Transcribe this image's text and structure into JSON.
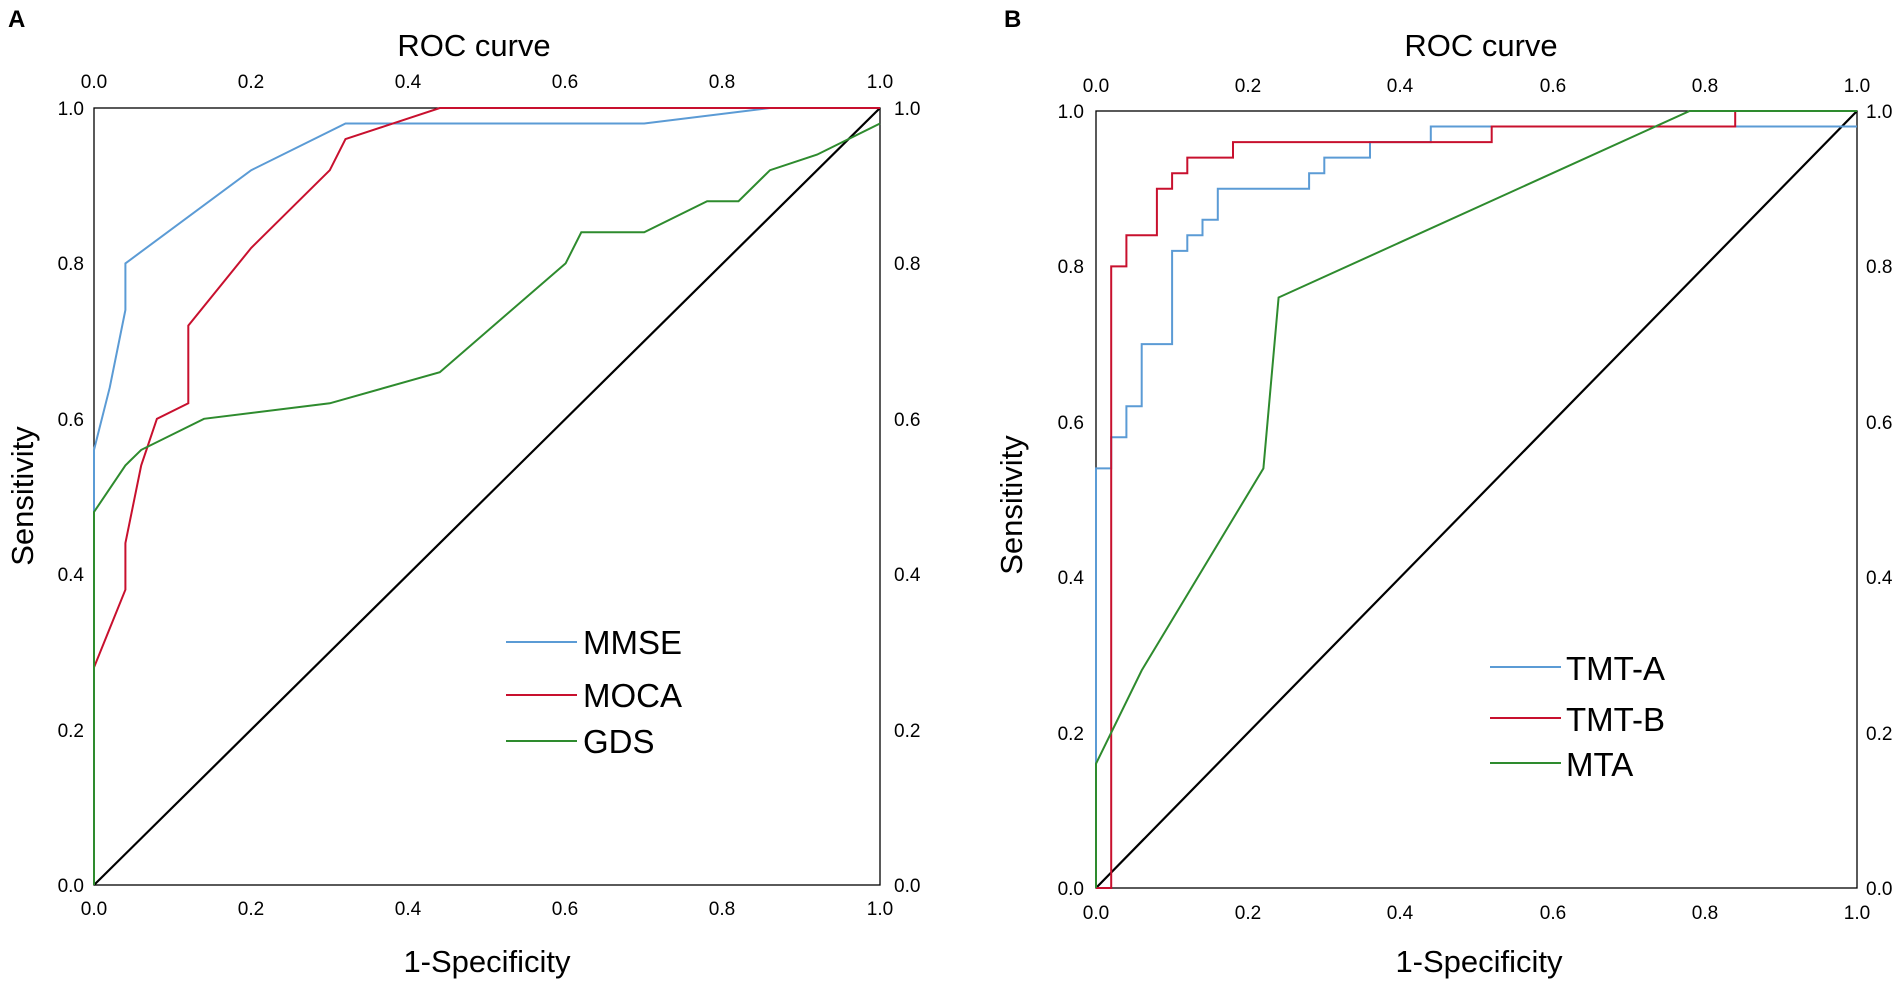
{
  "chart_data": [
    {
      "panel": "A",
      "type": "line",
      "title": "ROC curve",
      "xlabel": "1-Specificity",
      "ylabel": "Sensitivity",
      "xlim": [
        0,
        1
      ],
      "ylim": [
        0,
        1
      ],
      "ticks": [
        "0.0",
        "0.2",
        "0.4",
        "0.6",
        "0.8",
        "1.0"
      ],
      "legend_position": "lower-right",
      "reference_line": true,
      "series": [
        {
          "name": "MMSE",
          "color": "#5b9bd5",
          "x": [
            0,
            0,
            0.02,
            0.04,
            0.04,
            0.2,
            0.32,
            0.7,
            0.86,
            1.0
          ],
          "y": [
            0,
            0.56,
            0.64,
            0.74,
            0.8,
            0.92,
            0.98,
            0.98,
            1.0,
            1.0
          ]
        },
        {
          "name": "MOCA",
          "color": "#c8102e",
          "x": [
            0,
            0,
            0.04,
            0.04,
            0.06,
            0.08,
            0.12,
            0.12,
            0.2,
            0.3,
            0.32,
            0.44,
            1.0
          ],
          "y": [
            0,
            0.28,
            0.38,
            0.44,
            0.54,
            0.6,
            0.62,
            0.72,
            0.82,
            0.92,
            0.96,
            1.0,
            1.0
          ]
        },
        {
          "name": "GDS",
          "color": "#2e8b2e",
          "x": [
            0,
            0,
            0.04,
            0.06,
            0.14,
            0.3,
            0.44,
            0.6,
            0.62,
            0.7,
            0.78,
            0.82,
            0.86,
            0.92,
            1.0
          ],
          "y": [
            0,
            0.48,
            0.54,
            0.56,
            0.6,
            0.62,
            0.66,
            0.8,
            0.84,
            0.84,
            0.88,
            0.88,
            0.92,
            0.94,
            0.98
          ]
        }
      ]
    },
    {
      "panel": "B",
      "type": "line",
      "title": "ROC curve",
      "xlabel": "1-Specificity",
      "ylabel": "Sensitivity",
      "xlim": [
        0,
        1
      ],
      "ylim": [
        0,
        1
      ],
      "ticks": [
        "0.0",
        "0.2",
        "0.4",
        "0.6",
        "0.8",
        "1.0"
      ],
      "legend_position": "lower-right",
      "reference_line": true,
      "series": [
        {
          "name": "TMT-A",
          "color": "#5b9bd5",
          "x": [
            0,
            0,
            0.02,
            0.02,
            0.04,
            0.04,
            0.06,
            0.06,
            0.1,
            0.1,
            0.12,
            0.12,
            0.14,
            0.14,
            0.16,
            0.16,
            0.28,
            0.28,
            0.3,
            0.3,
            0.36,
            0.36,
            0.44,
            0.44,
            0.8,
            0.8,
            1.0
          ],
          "y": [
            0,
            0.54,
            0.54,
            0.58,
            0.58,
            0.62,
            0.62,
            0.7,
            0.7,
            0.82,
            0.82,
            0.84,
            0.84,
            0.86,
            0.86,
            0.9,
            0.9,
            0.92,
            0.92,
            0.94,
            0.94,
            0.96,
            0.96,
            0.98,
            0.98,
            0.98,
            0.98
          ]
        },
        {
          "name": "TMT-B",
          "color": "#c8102e",
          "x": [
            0,
            0.02,
            0.02,
            0.04,
            0.04,
            0.08,
            0.08,
            0.1,
            0.1,
            0.12,
            0.12,
            0.18,
            0.18,
            0.52,
            0.52,
            0.84,
            0.84,
            1.0
          ],
          "y": [
            0,
            0,
            0.8,
            0.8,
            0.84,
            0.84,
            0.9,
            0.9,
            0.92,
            0.92,
            0.94,
            0.94,
            0.96,
            0.96,
            0.98,
            0.98,
            1.0,
            1.0
          ]
        },
        {
          "name": "MTA",
          "color": "#2e8b2e",
          "x": [
            0,
            0,
            0.06,
            0.22,
            0.24,
            0.78,
            1.0
          ],
          "y": [
            0,
            0.16,
            0.28,
            0.54,
            0.76,
            1.0,
            1.0
          ]
        }
      ]
    }
  ]
}
